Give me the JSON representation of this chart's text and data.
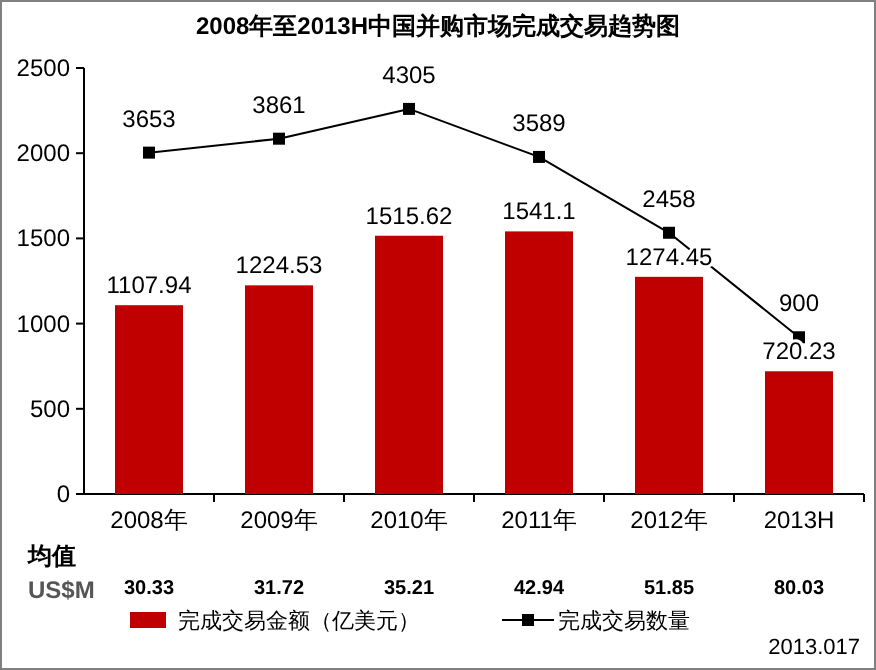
{
  "chart_data": {
    "type": "bar",
    "title": "2008年至2013H中国并购市场完成交易趋势图",
    "categories": [
      "2008年",
      "2009年",
      "2010年",
      "2011年",
      "2012年",
      "2013H"
    ],
    "series": [
      {
        "name": "完成交易金额（亿美元）",
        "color": "#c00000",
        "values": [
          1107.94,
          1224.53,
          1515.62,
          1541.1,
          1274.45,
          720.23
        ]
      },
      {
        "name": "完成交易数量",
        "type": "line",
        "axis": "y2",
        "color": "#000000",
        "marker": "square",
        "values": [
          3653,
          3861,
          4305,
          3589,
          2458,
          900
        ]
      }
    ],
    "ylim": [
      0,
      2500
    ],
    "yticks": [
      0,
      500,
      1000,
      1500,
      2000,
      2500
    ],
    "y2lim": [
      -1437,
      4915
    ],
    "data_labels": true,
    "legend": "bottom",
    "grid": false,
    "annotations": [
      "均值",
      "US$M",
      "30.33",
      "31.72",
      "35.21",
      "42.94",
      "51.85",
      "80.03",
      "2013.017"
    ]
  }
}
